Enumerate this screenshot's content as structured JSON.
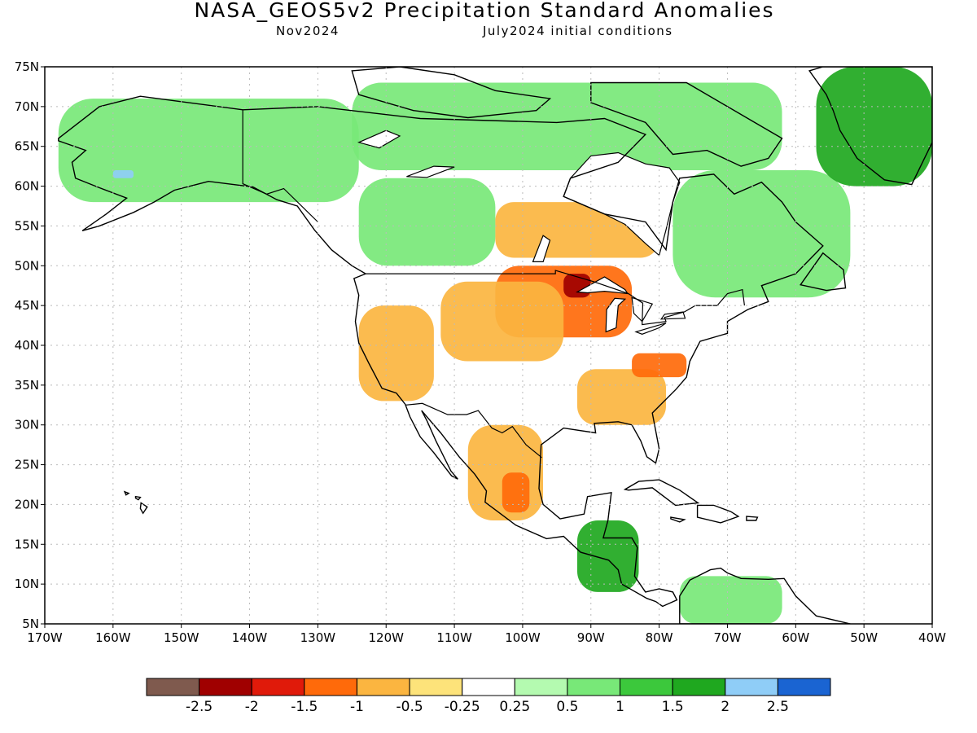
{
  "title": "NASA_GEOS5v2 Precipitation Standard Anomalies",
  "subtitle_left": "Nov2024",
  "subtitle_right": "July2024 initial conditions",
  "colors": {
    "land": "#ffffff",
    "ocean": "#ffffff",
    "coast": "#000000",
    "grid": "#bbbbbb"
  },
  "chart_data": {
    "type": "heatmap",
    "variable": "precipitation standard anomaly",
    "lon_range": [
      -170,
      -40
    ],
    "lat_range": [
      5,
      75
    ],
    "lon_ticks": [
      "170W",
      "160W",
      "150W",
      "140W",
      "130W",
      "120W",
      "110W",
      "100W",
      "90W",
      "80W",
      "70W",
      "60W",
      "50W",
      "40W"
    ],
    "lat_ticks": [
      "75N",
      "70N",
      "65N",
      "60N",
      "55N",
      "50N",
      "45N",
      "40N",
      "35N",
      "30N",
      "25N",
      "20N",
      "15N",
      "10N",
      "5N"
    ],
    "grid_lines": "dotted",
    "colorbar": {
      "labels": [
        "-2.5",
        "-2",
        "-1.5",
        "-1",
        "-0.5",
        "-0.25",
        "0.25",
        "0.5",
        "1",
        "1.5",
        "2",
        "2.5"
      ],
      "colors": [
        "#7f5a4e",
        "#a00000",
        "#e01a0a",
        "#ff6a0a",
        "#fbb540",
        "#fde37a",
        "#ffffff",
        "#b4fab0",
        "#78e878",
        "#3cc83c",
        "#1fa81f",
        "#8fcdf7",
        "#1a64d2"
      ]
    },
    "regions": [
      {
        "name": "alaska-yukon",
        "lon": [
          -168,
          -124
        ],
        "lat": [
          58,
          71
        ],
        "class": 1
      },
      {
        "name": "canada-north",
        "lon": [
          -125,
          -62
        ],
        "lat": [
          62,
          73
        ],
        "class": 1
      },
      {
        "name": "canada-west",
        "lon": [
          -124,
          -104
        ],
        "lat": [
          50,
          61
        ],
        "class": 1
      },
      {
        "name": "quebec-labrador",
        "lon": [
          -78,
          -52
        ],
        "lat": [
          46,
          62
        ],
        "class": 1
      },
      {
        "name": "greenland",
        "lon": [
          -57,
          -40
        ],
        "lat": [
          60,
          75
        ],
        "class": 2
      },
      {
        "name": "alaska-wet-spot",
        "lon": [
          -160,
          -157
        ],
        "lat": [
          61,
          62
        ],
        "class": 4
      },
      {
        "name": "upper-midwest",
        "lon": [
          -104,
          -84
        ],
        "lat": [
          41,
          50
        ],
        "class": -2
      },
      {
        "name": "north-dakota-core",
        "lon": [
          -94,
          -90
        ],
        "lat": [
          46,
          49
        ],
        "class": -3
      },
      {
        "name": "great-plains",
        "lon": [
          -112,
          -94
        ],
        "lat": [
          38,
          48
        ],
        "class": -1
      },
      {
        "name": "west-us",
        "lon": [
          -124,
          -113
        ],
        "lat": [
          33,
          45
        ],
        "class": -1
      },
      {
        "name": "southeast-us",
        "lon": [
          -92,
          -79
        ],
        "lat": [
          30,
          37
        ],
        "class": -1
      },
      {
        "name": "mid-atlantic",
        "lon": [
          -84,
          -76
        ],
        "lat": [
          36,
          39
        ],
        "class": -2
      },
      {
        "name": "hudson-south",
        "lon": [
          -104,
          -80
        ],
        "lat": [
          51,
          58
        ],
        "class": -1
      },
      {
        "name": "mexico-interior",
        "lon": [
          -108,
          -97
        ],
        "lat": [
          18,
          30
        ],
        "class": -1
      },
      {
        "name": "mexico-core",
        "lon": [
          -103,
          -99
        ],
        "lat": [
          19,
          24
        ],
        "class": -2
      },
      {
        "name": "central-america",
        "lon": [
          -92,
          -83
        ],
        "lat": [
          9,
          18
        ],
        "class": 2
      },
      {
        "name": "south-america-north",
        "lon": [
          -77,
          -62
        ],
        "lat": [
          5,
          11
        ],
        "class": 1
      }
    ]
  }
}
